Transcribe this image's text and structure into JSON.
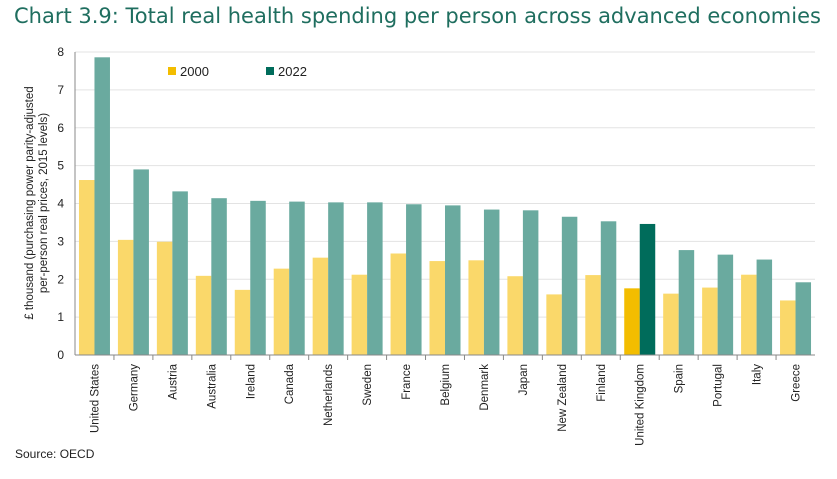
{
  "title": "Chart 3.9: Total real health spending per person across advanced economies",
  "source": "Source: OECD",
  "colors": {
    "series_2000": "#fad86a",
    "series_2022": "#6aaa9f",
    "highlight_2000": "#f3bd00",
    "highlight_2022": "#006c5b",
    "axis": "#888888",
    "grid": "#e3e3e3",
    "title": "#1f6e5f"
  },
  "chart_data": {
    "type": "bar",
    "title": "Chart 3.9: Total real health spending per person across advanced economies",
    "ylabel_line1": "£ thousand (purchasing power parity-adjusted",
    "ylabel_line2": "per-person real prices, 2015 levels)",
    "xlabel": "",
    "ylim": [
      0,
      8
    ],
    "yticks": [
      "0",
      "1",
      "2",
      "3",
      "4",
      "5",
      "6",
      "7",
      "8"
    ],
    "grid": true,
    "legend_position": "top-left",
    "highlight_category": "United Kingdom",
    "categories": [
      "United States",
      "Germany",
      "Austria",
      "Australia",
      "Ireland",
      "Canada",
      "Netherlands",
      "Sweden",
      "France",
      "Belgium",
      "Denmark",
      "Japan",
      "New Zealand",
      "Finland",
      "United Kingdom",
      "Spain",
      "Portugal",
      "Italy",
      "Greece"
    ],
    "series": [
      {
        "name": "2000",
        "values": [
          4.62,
          3.04,
          2.99,
          2.09,
          1.72,
          2.28,
          2.57,
          2.12,
          2.68,
          2.48,
          2.5,
          2.08,
          1.6,
          2.11,
          1.76,
          1.62,
          1.78,
          2.12,
          1.44
        ]
      },
      {
        "name": "2022",
        "values": [
          7.86,
          4.9,
          4.32,
          4.14,
          4.07,
          4.05,
          4.03,
          4.03,
          3.98,
          3.95,
          3.84,
          3.82,
          3.65,
          3.53,
          3.46,
          2.77,
          2.65,
          2.52,
          1.92
        ]
      }
    ]
  }
}
